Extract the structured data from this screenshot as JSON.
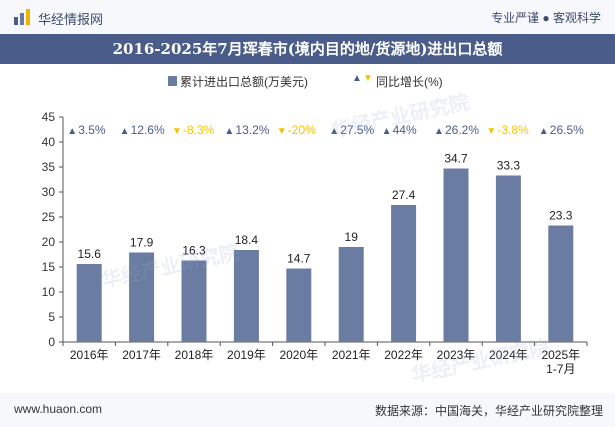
{
  "header": {
    "site_name": "华经情报网",
    "slogan": "专业严谨 ● 客观科学"
  },
  "footer": {
    "url": "www.huaon.com",
    "source": "数据来源：中国海关，华经产业研究院整理"
  },
  "watermark": "华经产业研究院",
  "colors": {
    "bar": "#6b7ca3",
    "up": "#4a5c8a",
    "down": "#f5c400",
    "title_bg": "#4a5c8a"
  },
  "chart_data": {
    "type": "bar",
    "title": "2016-2025年7月珲春市(境内目的地/货源地)进出口总额",
    "categories": [
      "2016年",
      "2017年",
      "2018年",
      "2019年",
      "2020年",
      "2021年",
      "2022年",
      "2023年",
      "2024年",
      "2025年\n1-7月"
    ],
    "series": [
      {
        "name": "累计进出口总额(万美元)",
        "values": [
          15.6,
          17.9,
          16.3,
          18.4,
          14.7,
          19,
          27.4,
          34.7,
          33.3,
          23.3
        ]
      }
    ],
    "value_labels": [
      "15.6",
      "17.9",
      "16.3",
      "18.4",
      "14.7",
      "19",
      "27.4",
      "34.7",
      "33.3",
      "23.3"
    ],
    "growth": {
      "name": "同比增长(%)",
      "values": [
        3.5,
        12.6,
        -8.3,
        13.2,
        -20,
        27.5,
        44,
        26.2,
        -3.8,
        26.5
      ],
      "labels": [
        "3.5%",
        "12.6%",
        "-8.3%",
        "13.2%",
        "-20%",
        "27.5%",
        "44%",
        "26.2%",
        "-3.8%",
        "26.5%"
      ]
    },
    "ylim": [
      0,
      45
    ],
    "yticks": [
      0,
      5,
      10,
      15,
      20,
      25,
      30,
      35,
      40,
      45
    ],
    "grid": false,
    "legend": "top-center"
  }
}
